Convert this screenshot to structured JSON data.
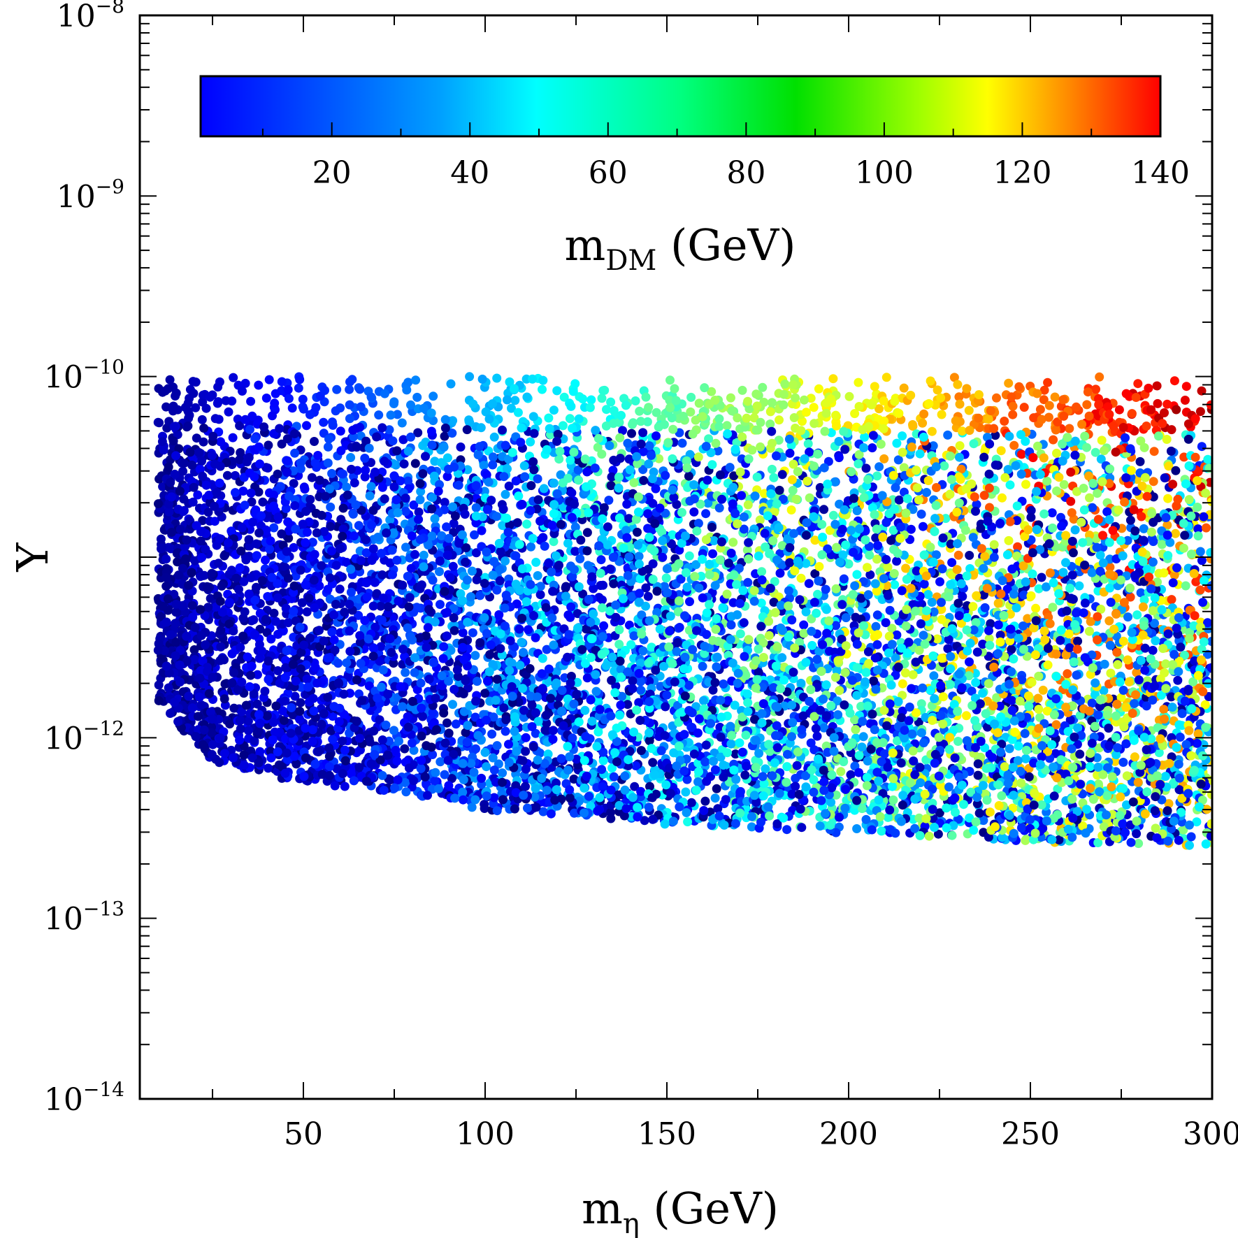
{
  "chart_data": {
    "type": "scatter",
    "title": "",
    "xlabel_main": "m",
    "xlabel_sub": "η",
    "xlabel_unit": " (GeV)",
    "ylabel": "Y",
    "xlim": [
      5,
      300
    ],
    "ylim_log10": [
      -14,
      -8
    ],
    "y_scale": "log",
    "x_ticks": [
      50,
      100,
      150,
      200,
      250,
      300
    ],
    "x_tick_labels": [
      "50",
      "100",
      "150",
      "200",
      "250",
      "300"
    ],
    "y_ticks_log10": [
      -14,
      -13,
      -12,
      -11,
      -10,
      -9,
      -8
    ],
    "y_tick_labels": [
      {
        "base": "10",
        "exp": "−14"
      },
      {
        "base": "10",
        "exp": "−13"
      },
      {
        "base": "10",
        "exp": "−12"
      },
      {
        "base": "",
        "exp": ""
      },
      {
        "base": "10",
        "exp": "−10"
      },
      {
        "base": "10",
        "exp": "−9"
      },
      {
        "base": "10",
        "exp": "−8"
      }
    ],
    "colorbar": {
      "label_main": "m",
      "label_sub": "DM",
      "label_unit": " (GeV)",
      "range": [
        1,
        140
      ],
      "ticks": [
        20,
        40,
        60,
        80,
        100,
        120,
        140
      ],
      "tick_labels": [
        "20",
        "40",
        "60",
        "80",
        "100",
        "120",
        "140"
      ],
      "colormap": "jet",
      "placement": "inside-top"
    },
    "point_cloud": {
      "description_x_range": [
        10,
        300
      ],
      "upper_log10_y": -10,
      "lower_boundary": [
        {
          "x": 10,
          "log10_y": -11.8
        },
        {
          "x": 25,
          "log10_y": -12.15
        },
        {
          "x": 50,
          "log10_y": -12.25
        },
        {
          "x": 75,
          "log10_y": -12.3
        },
        {
          "x": 100,
          "log10_y": -12.4
        },
        {
          "x": 150,
          "log10_y": -12.48
        },
        {
          "x": 200,
          "log10_y": -12.53
        },
        {
          "x": 250,
          "log10_y": -12.58
        },
        {
          "x": 300,
          "log10_y": -12.6
        }
      ],
      "color_trend": "top edge colour rises from ~5 GeV at x=10 to ~140 GeV at x=300; lower points span 1 GeV up to ~x/2"
    }
  }
}
